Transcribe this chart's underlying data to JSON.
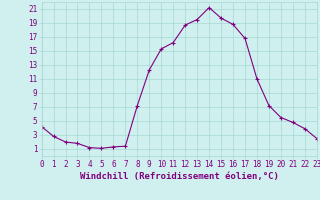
{
  "x_values": [
    0,
    1,
    2,
    3,
    4,
    5,
    6,
    7,
    8,
    9,
    10,
    11,
    12,
    13,
    14,
    15,
    16,
    17,
    18,
    19,
    20,
    21,
    22,
    23
  ],
  "y_values": [
    4.2,
    2.8,
    2.0,
    1.8,
    1.2,
    1.1,
    1.3,
    1.4,
    7.2,
    12.3,
    15.3,
    16.2,
    18.7,
    19.5,
    21.2,
    19.7,
    18.8,
    16.8,
    11.0,
    7.2,
    5.5,
    4.8,
    3.9,
    2.5
  ],
  "line_color": "#800080",
  "marker": "+",
  "marker_size": 3.5,
  "bg_color": "#cff0ee",
  "grid_color": "#a8d8d4",
  "xlabel": "Windchill (Refroidissement éolien,°C)",
  "xlim": [
    0,
    23
  ],
  "ylim": [
    0,
    22
  ],
  "yticks": [
    1,
    3,
    5,
    7,
    9,
    11,
    13,
    15,
    17,
    19,
    21
  ],
  "xticks": [
    0,
    1,
    2,
    3,
    4,
    5,
    6,
    7,
    8,
    9,
    10,
    11,
    12,
    13,
    14,
    15,
    16,
    17,
    18,
    19,
    20,
    21,
    22,
    23
  ],
  "tick_color": "#800080",
  "label_color": "#800080",
  "font_size": 5.5,
  "xlabel_fontsize": 6.5,
  "line_width": 0.8,
  "marker_edge_width": 0.8
}
